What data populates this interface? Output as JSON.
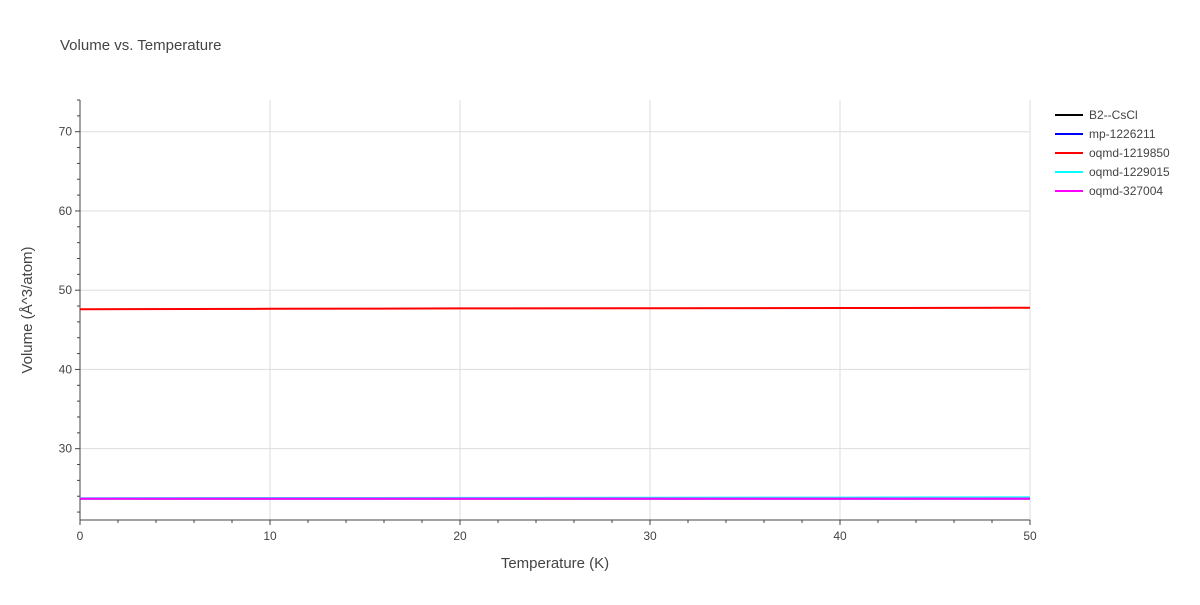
{
  "chart_data": {
    "type": "line",
    "title": "Volume vs. Temperature",
    "xlabel": "Temperature (K)",
    "ylabel": "Volume (Å^3/atom)",
    "xlim": [
      0,
      50
    ],
    "ylim": [
      21,
      74
    ],
    "x_ticks": [
      0,
      10,
      20,
      30,
      40,
      50
    ],
    "y_ticks": [
      30,
      40,
      50,
      60,
      70
    ],
    "grid": true,
    "legend_position": "top-right",
    "series": [
      {
        "name": "B2--CsCl",
        "color": "#000000",
        "x": [
          0,
          10,
          20,
          30,
          40,
          50
        ],
        "y": [
          23.7,
          23.7,
          23.7,
          23.7,
          23.7,
          23.7
        ]
      },
      {
        "name": "mp-1226211",
        "color": "#0000ff",
        "x": [
          0,
          10,
          20,
          30,
          40,
          50
        ],
        "y": [
          23.7,
          23.7,
          23.7,
          23.7,
          23.7,
          23.7
        ]
      },
      {
        "name": "oqmd-1219850",
        "color": "#ff0000",
        "x": [
          0,
          10,
          20,
          30,
          40,
          50
        ],
        "y": [
          47.6,
          47.65,
          47.7,
          47.72,
          47.75,
          47.78
        ]
      },
      {
        "name": "oqmd-1229015",
        "color": "#00ffff",
        "x": [
          0,
          10,
          20,
          30,
          40,
          50
        ],
        "y": [
          23.75,
          23.77,
          23.79,
          23.81,
          23.83,
          23.86
        ]
      },
      {
        "name": "oqmd-327004",
        "color": "#ff00ff",
        "x": [
          0,
          10,
          20,
          30,
          40,
          50
        ],
        "y": [
          23.7,
          23.7,
          23.7,
          23.7,
          23.7,
          23.7
        ]
      }
    ]
  }
}
